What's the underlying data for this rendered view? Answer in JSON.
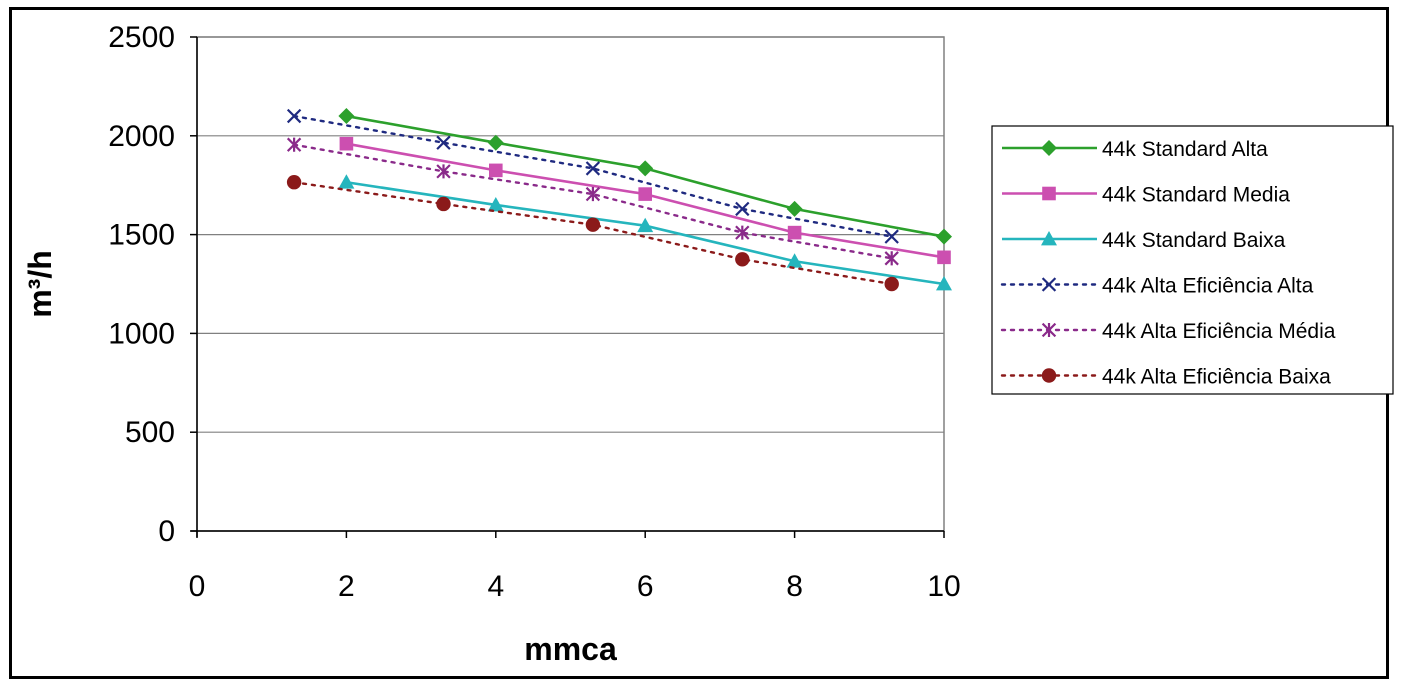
{
  "chart_data": {
    "type": "line",
    "title": "",
    "xlabel": "mmca",
    "ylabel": "m³/h",
    "xlim": [
      0,
      10
    ],
    "ylim": [
      0,
      2500
    ],
    "xticks": [
      "0",
      "2",
      "4",
      "6",
      "8",
      "10"
    ],
    "yticks": [
      "0",
      "500",
      "1000",
      "1500",
      "2000",
      "2500"
    ],
    "grid": "horizontal",
    "legend_position": "right",
    "series": [
      {
        "name": "44k Standard Alta",
        "style": "solid",
        "marker": "diamond",
        "color": "#2ca02c",
        "x": [
          2,
          4,
          6,
          8,
          10
        ],
        "y": [
          2100,
          1965,
          1835,
          1630,
          1490
        ]
      },
      {
        "name": "44k Standard Media",
        "style": "solid",
        "marker": "square",
        "color": "#cc4fb0",
        "x": [
          2,
          4,
          6,
          8,
          10
        ],
        "y": [
          1960,
          1825,
          1705,
          1510,
          1385
        ]
      },
      {
        "name": "44k Standard Baixa",
        "style": "solid",
        "marker": "triangle",
        "color": "#25b5bd",
        "x": [
          2,
          4,
          6,
          8,
          10
        ],
        "y": [
          1765,
          1650,
          1545,
          1365,
          1250
        ]
      },
      {
        "name": "44k Alta Eficiência Alta",
        "style": "dotted",
        "marker": "x",
        "color": "#1f2a80",
        "x": [
          1.3,
          3.3,
          5.3,
          7.3,
          9.3
        ],
        "y": [
          2100,
          1965,
          1835,
          1630,
          1490
        ]
      },
      {
        "name": "44k Alta Eficiência Média",
        "style": "dotted",
        "marker": "asterisk",
        "color": "#8a2a8a",
        "x": [
          1.3,
          3.3,
          5.3,
          7.3,
          9.3
        ],
        "y": [
          1955,
          1820,
          1705,
          1510,
          1380
        ]
      },
      {
        "name": "44k Alta Eficiência Baixa",
        "style": "dotted",
        "marker": "circle",
        "color": "#8b1a1a",
        "x": [
          1.3,
          3.3,
          5.3,
          7.3,
          9.3
        ],
        "y": [
          1765,
          1655,
          1550,
          1375,
          1250
        ]
      }
    ]
  }
}
